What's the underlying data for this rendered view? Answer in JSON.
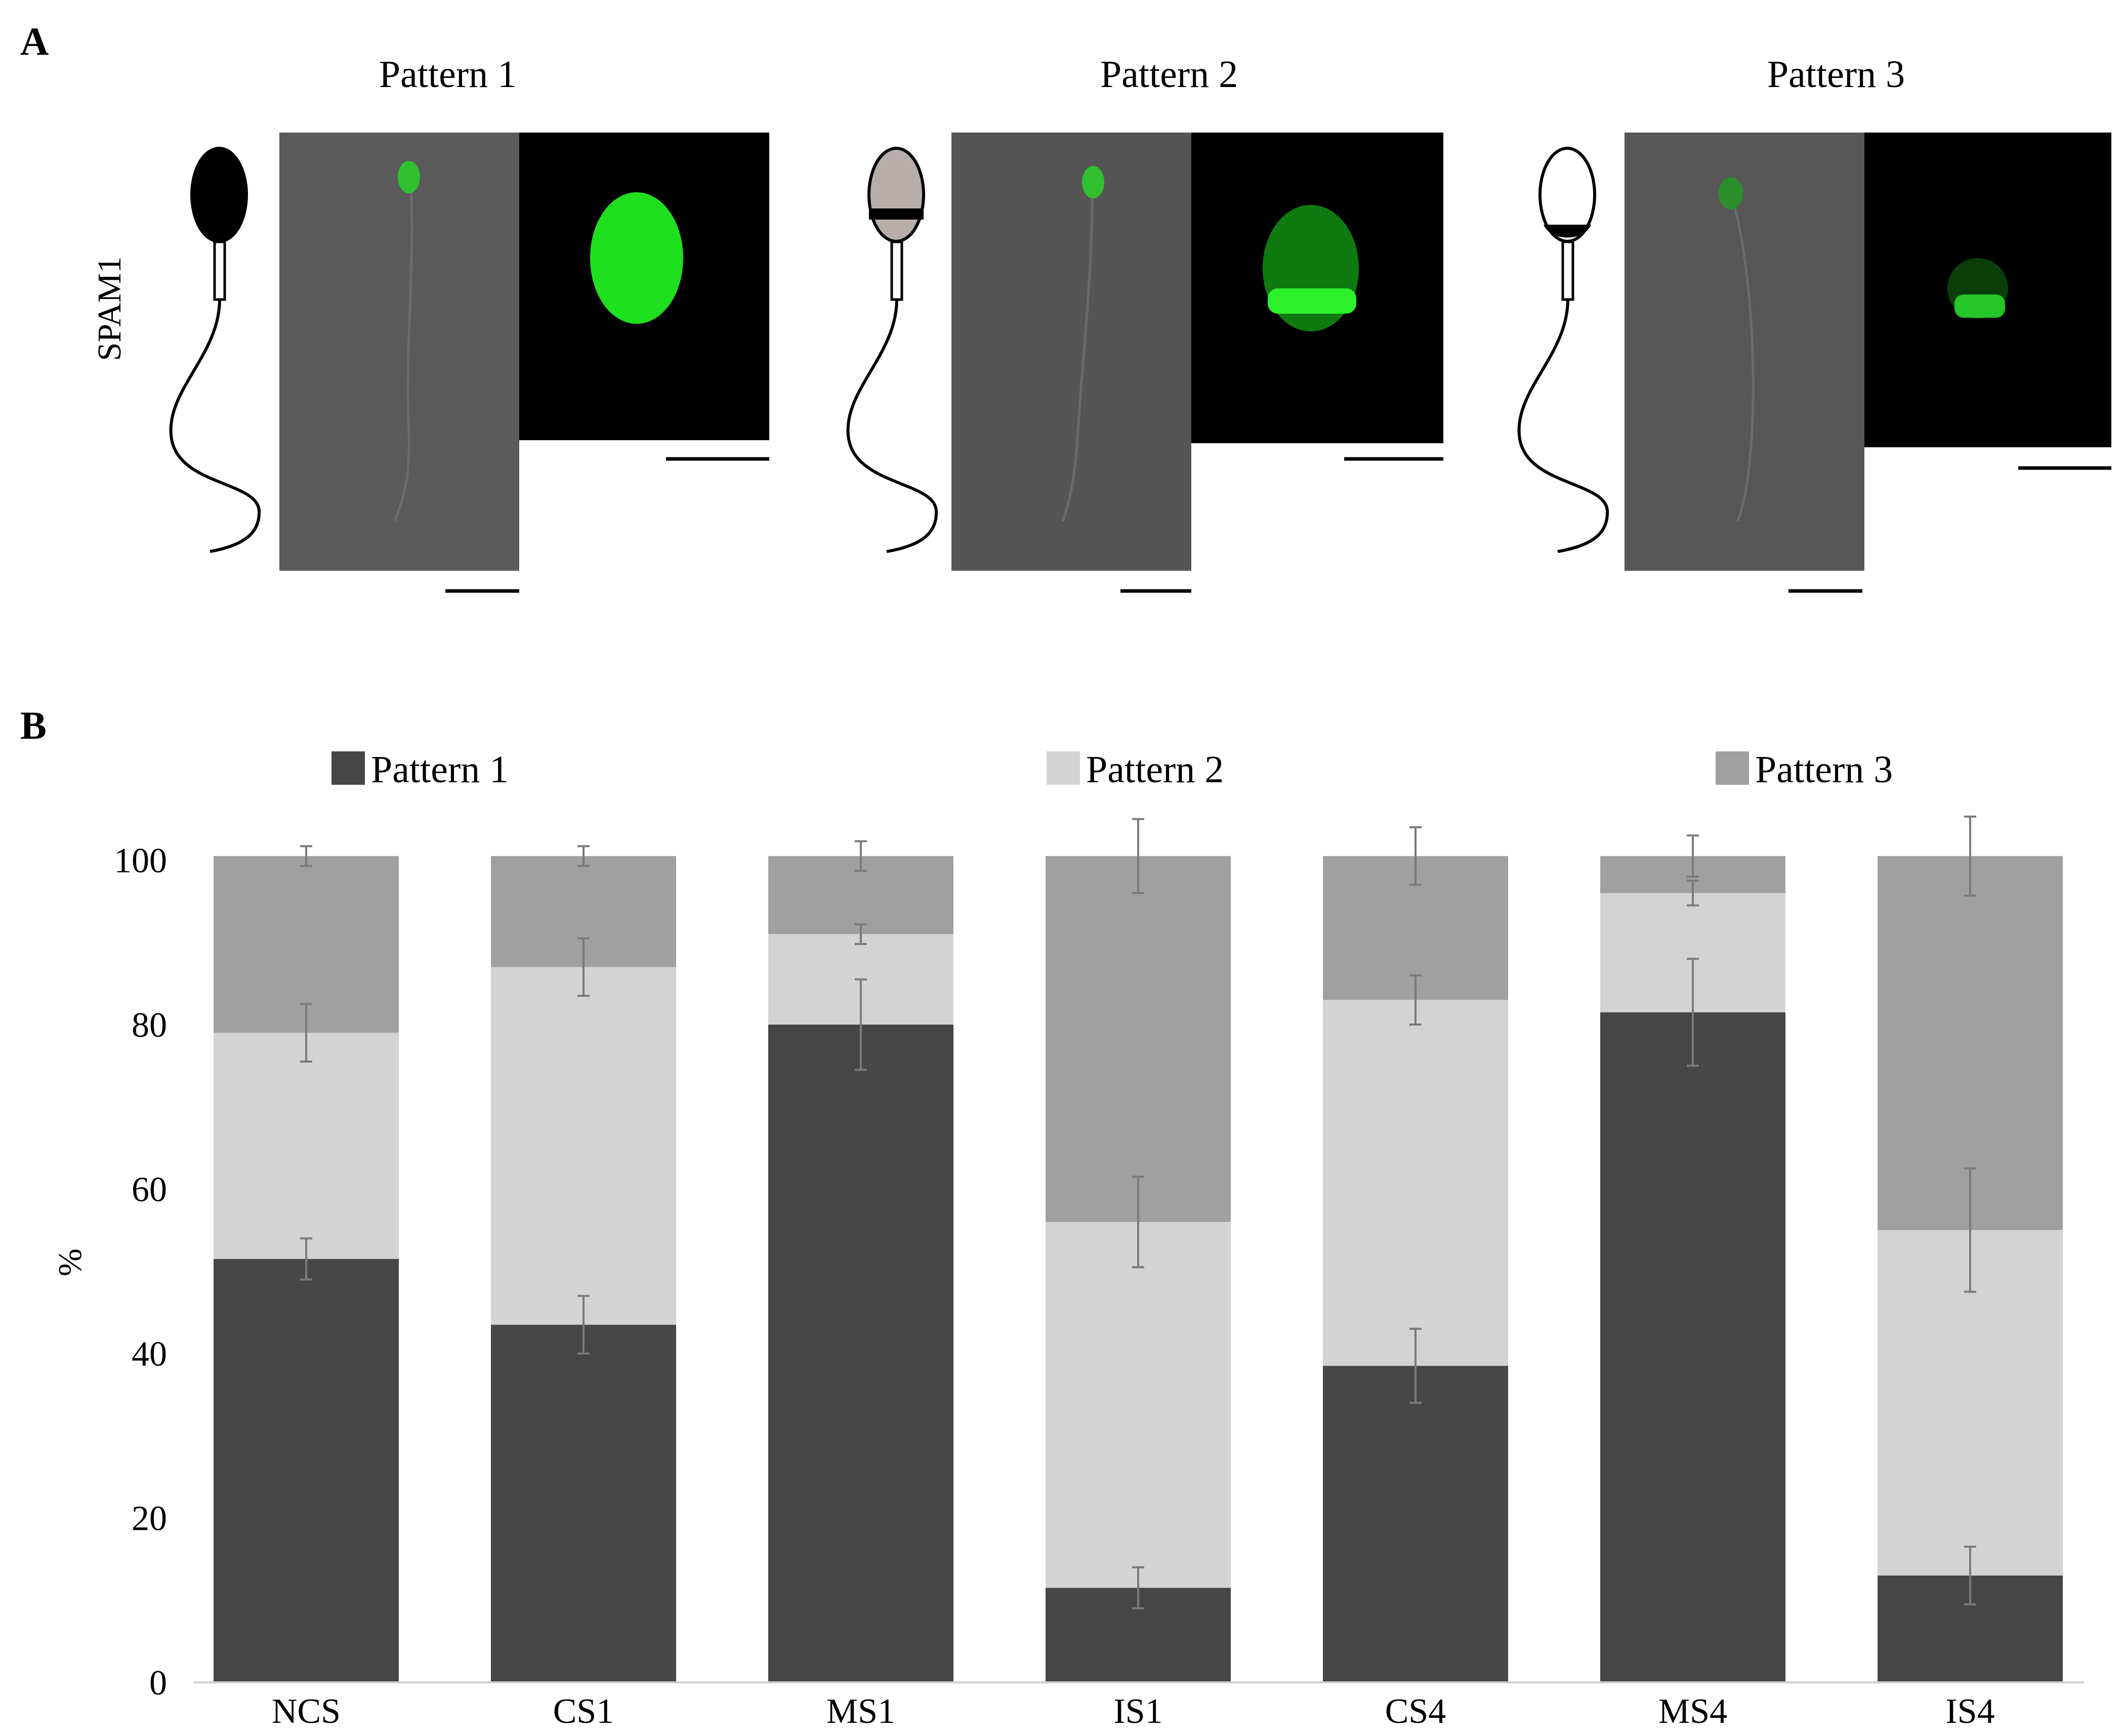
{
  "figure": {
    "panel_a_letter": "A",
    "panel_b_letter": "B"
  },
  "panel_a": {
    "row_label": "SPAM1",
    "patterns": [
      {
        "title": "Pattern 1",
        "head_style": "full",
        "signal": "whole-acrosome"
      },
      {
        "title": "Pattern 2",
        "head_style": "equatorial",
        "signal": "equatorial-band"
      },
      {
        "title": "Pattern 3",
        "head_style": "postacrosomal",
        "signal": "faint-equatorial"
      }
    ],
    "colors": {
      "brightfield": "#555555",
      "fluorescence_bg": "#000000",
      "signal": "#1fe01f",
      "pattern2_head_fill": "#b9adab"
    }
  },
  "chart_data": {
    "type": "bar",
    "stacked": true,
    "categories": [
      "NCS",
      "CS1",
      "MS1",
      "IS1",
      "CS4",
      "MS4",
      "IS4"
    ],
    "series": [
      {
        "name": "Pattern 1",
        "color": "#464646",
        "values": [
          51.5,
          43.5,
          80,
          11.5,
          38.5,
          81.5,
          13
        ],
        "errors": [
          2.5,
          3.5,
          5.5,
          2.5,
          4.5,
          6.5,
          3.5
        ]
      },
      {
        "name": "Pattern 2",
        "color": "#d3d3d3",
        "values": [
          27.5,
          43.5,
          11,
          44.5,
          44.5,
          14.5,
          42
        ],
        "errors": [
          3.5,
          3.5,
          1.2,
          5.5,
          3,
          1.5,
          7.5
        ]
      },
      {
        "name": "Pattern 3",
        "color": "#a0a0a0",
        "values": [
          21.5,
          13.5,
          9.5,
          44.5,
          17.5,
          4.5,
          45.5
        ],
        "errors": [
          1.2,
          1.2,
          1.8,
          4.5,
          3.5,
          2.5,
          4.8
        ]
      }
    ],
    "title": "",
    "xlabel": "",
    "ylabel": "%",
    "ylim": [
      0,
      100
    ],
    "yticks": [
      "0",
      "20",
      "40",
      "60",
      "80",
      "100"
    ],
    "grid": false,
    "legend_position": "top"
  }
}
